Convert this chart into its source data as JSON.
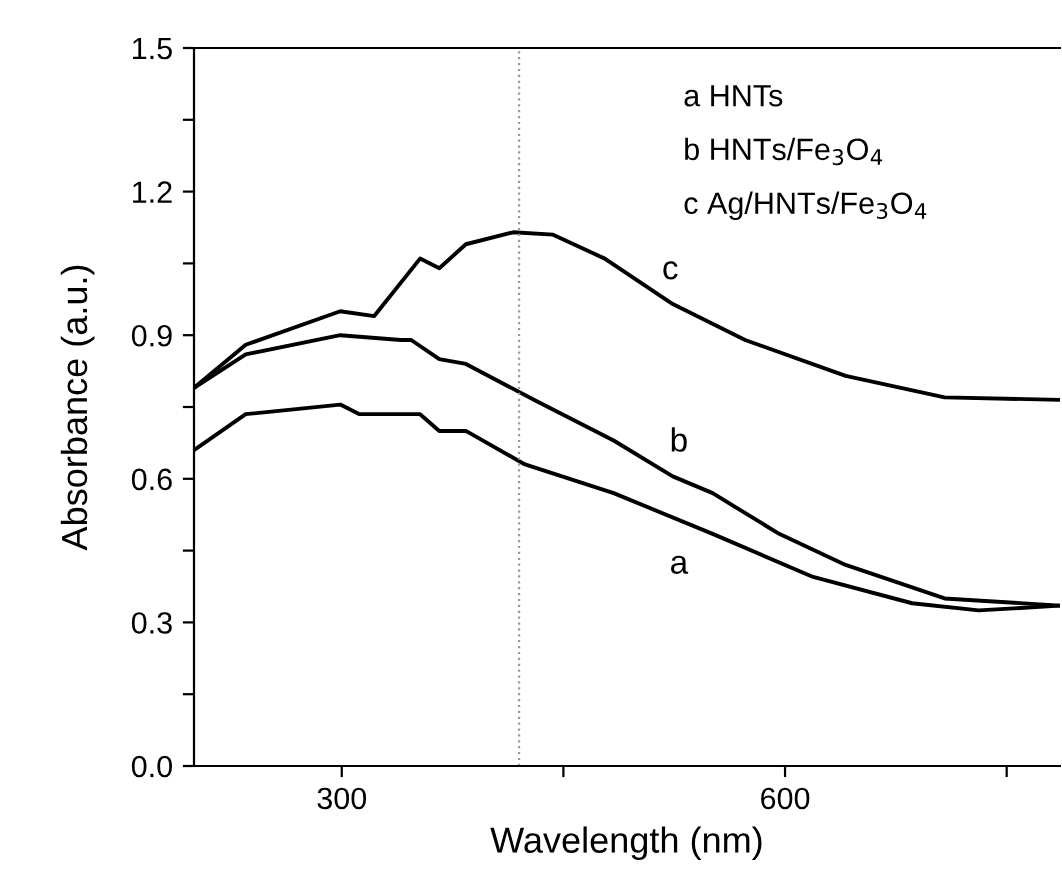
{
  "chart_data": {
    "type": "line",
    "xlabel": "Wavelength (nm)",
    "ylabel": "Absorbance (a.u.)",
    "xlim": [
      200,
      786
    ],
    "xticks": [
      300,
      {
        "value": 450,
        "label": null
      },
      600,
      {
        "value": 750,
        "label": null
      }
    ],
    "ylim": [
      0,
      1.5
    ],
    "yticks": [
      {
        "value": 0,
        "label": "0.0"
      },
      {
        "value": 0.15,
        "label": null
      },
      0.3,
      {
        "value": 0.45,
        "label": null
      },
      0.6,
      {
        "value": 0.75,
        "label": null
      },
      0.9,
      {
        "value": 1.05,
        "label": null
      },
      1.2,
      {
        "value": 1.35,
        "label": null
      },
      1.5
    ],
    "grid": false,
    "legend": false,
    "marker": "none",
    "line_style": "solid",
    "ref_lines": [
      {
        "axis": "x",
        "value": 420,
        "label": null,
        "color": "#999999",
        "line_style": "dotted"
      }
    ],
    "series": [
      {
        "color": "#000000",
        "x": [
          200,
          235,
          299,
          312,
          353,
          366,
          384,
          424,
          484,
          551,
          619,
          686,
          731,
          786
        ],
        "values": [
          0.66,
          0.735,
          0.755,
          0.735,
          0.735,
          0.7,
          0.7,
          0.63,
          0.57,
          0.485,
          0.395,
          0.34,
          0.325,
          0.335
        ]
      },
      {
        "color": "#000000",
        "x": [
          200,
          235,
          299,
          340,
          347,
          366,
          384,
          430,
          484,
          524,
          551,
          596,
          641,
          708,
          786
        ],
        "values": [
          0.79,
          0.86,
          0.9,
          0.89,
          0.89,
          0.85,
          0.84,
          0.765,
          0.68,
          0.605,
          0.57,
          0.485,
          0.42,
          0.35,
          0.335
        ]
      },
      {
        "color": "#000000",
        "x": [
          200,
          235,
          299,
          322,
          353,
          366,
          384,
          416,
          443,
          478,
          524,
          573,
          641,
          708,
          786
        ],
        "values": [
          0.79,
          0.88,
          0.95,
          0.94,
          1.06,
          1.04,
          1.09,
          1.115,
          1.11,
          1.06,
          0.965,
          0.89,
          0.815,
          0.77,
          0.765
        ]
      }
    ],
    "annotations": [
      "a HNTs",
      "b HNTs/Fe$_{3}$O$_{4}$",
      "c Ag/HNTs/Fe$_{3}$O$_{4}$",
      "a",
      "b",
      "c"
    ]
  }
}
